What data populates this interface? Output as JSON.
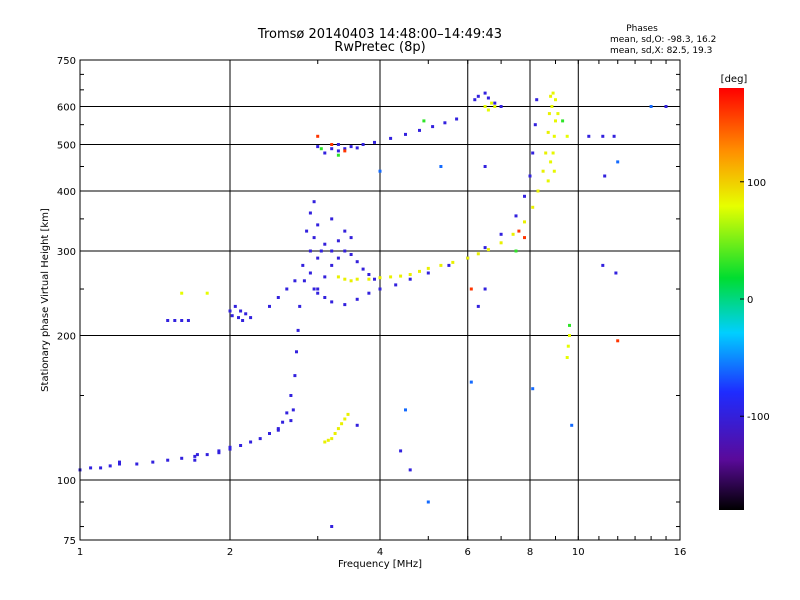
{
  "title_line1": "Tromsø 20140403 14:48:00–14:49:43",
  "title_line2": "RwPretec (8p)",
  "phases": {
    "heading": "Phases",
    "line_o": "mean, sd,O: -98.3, 16.2",
    "line_x": "mean, sd,X:  82.5, 19.3"
  },
  "chart_data": {
    "type": "scatter",
    "title": "Tromsø 20140403 14:48:00–14:49:43",
    "subtitle": "RwPretec (8p)",
    "xlabel": "Frequency [MHz]",
    "ylabel": "Stationary phase Virtual Height [km]",
    "xscale": "log",
    "yscale": "log",
    "xlim": [
      1,
      16
    ],
    "ylim": [
      75,
      750
    ],
    "xticks": [
      1,
      2,
      4,
      6,
      8,
      10,
      16
    ],
    "yticks": [
      75,
      100,
      200,
      300,
      400,
      500,
      600,
      750
    ],
    "grid": true,
    "colorbar": {
      "label": "[deg]",
      "range": [
        -180,
        180
      ],
      "ticks": [
        100,
        0,
        -100
      ]
    },
    "series": [
      {
        "phase": -98,
        "points": [
          [
            1.0,
            105
          ],
          [
            1.05,
            106
          ],
          [
            1.1,
            106
          ],
          [
            1.15,
            107
          ],
          [
            1.2,
            108
          ],
          [
            1.3,
            108
          ],
          [
            1.4,
            109
          ],
          [
            1.5,
            110
          ],
          [
            1.6,
            111
          ],
          [
            1.7,
            112
          ],
          [
            1.8,
            113
          ],
          [
            1.9,
            114
          ],
          [
            2.0,
            116
          ],
          [
            2.1,
            118
          ],
          [
            2.2,
            120
          ],
          [
            2.3,
            122
          ],
          [
            2.4,
            125
          ],
          [
            2.5,
            128
          ],
          [
            2.55,
            132
          ],
          [
            2.6,
            138
          ],
          [
            2.65,
            150
          ],
          [
            2.7,
            165
          ],
          [
            2.72,
            185
          ],
          [
            2.74,
            205
          ],
          [
            2.76,
            230
          ]
        ]
      },
      {
        "phase": -98,
        "points": [
          [
            1.7,
            110
          ],
          [
            1.72,
            113
          ],
          [
            1.9,
            115
          ],
          [
            2.0,
            117
          ],
          [
            2.5,
            127
          ],
          [
            2.65,
            133
          ],
          [
            2.68,
            140
          ],
          [
            1.2,
            109
          ]
        ]
      },
      {
        "phase": -98,
        "points": [
          [
            1.5,
            215
          ],
          [
            1.55,
            215
          ],
          [
            1.6,
            215
          ],
          [
            1.65,
            215
          ],
          [
            2.0,
            225
          ],
          [
            2.02,
            220
          ],
          [
            2.05,
            230
          ],
          [
            2.08,
            218
          ],
          [
            2.1,
            225
          ],
          [
            2.12,
            215
          ],
          [
            2.15,
            222
          ],
          [
            2.2,
            218
          ],
          [
            2.4,
            230
          ],
          [
            2.5,
            240
          ],
          [
            2.6,
            250
          ],
          [
            2.7,
            260
          ]
        ]
      },
      {
        "phase": -98,
        "points": [
          [
            2.8,
            280
          ],
          [
            2.85,
            330
          ],
          [
            2.9,
            360
          ],
          [
            2.95,
            380
          ],
          [
            3.0,
            340
          ],
          [
            3.05,
            300
          ],
          [
            2.82,
            260
          ],
          [
            2.9,
            270
          ],
          [
            2.95,
            250
          ],
          [
            3.0,
            245
          ],
          [
            3.1,
            240
          ],
          [
            3.2,
            235
          ],
          [
            3.4,
            232
          ],
          [
            3.6,
            238
          ],
          [
            3.8,
            245
          ],
          [
            4.0,
            250
          ],
          [
            4.3,
            255
          ],
          [
            4.6,
            262
          ],
          [
            5.0,
            270
          ],
          [
            5.5,
            280
          ],
          [
            6.0,
            290
          ],
          [
            6.5,
            305
          ],
          [
            7.0,
            325
          ],
          [
            7.5,
            355
          ],
          [
            7.8,
            390
          ],
          [
            8.0,
            430
          ],
          [
            8.1,
            480
          ],
          [
            8.2,
            550
          ],
          [
            8.25,
            620
          ]
        ]
      },
      {
        "phase": -100,
        "points": [
          [
            3.0,
            250
          ],
          [
            3.1,
            265
          ],
          [
            3.2,
            280
          ],
          [
            3.3,
            290
          ],
          [
            3.4,
            300
          ],
          [
            3.5,
            295
          ],
          [
            3.6,
            285
          ],
          [
            3.7,
            275
          ],
          [
            3.8,
            268
          ],
          [
            3.9,
            262
          ],
          [
            3.2,
            300
          ],
          [
            3.3,
            315
          ],
          [
            3.4,
            330
          ],
          [
            3.5,
            320
          ],
          [
            3.1,
            310
          ],
          [
            3.2,
            350
          ],
          [
            3.0,
            290
          ],
          [
            2.9,
            300
          ],
          [
            2.95,
            320
          ]
        ]
      },
      {
        "phase": -98,
        "points": [
          [
            3.2,
            490
          ],
          [
            3.3,
            485
          ],
          [
            3.4,
            490
          ],
          [
            3.5,
            495
          ],
          [
            3.7,
            500
          ],
          [
            3.9,
            505
          ],
          [
            4.2,
            515
          ],
          [
            4.5,
            525
          ],
          [
            4.8,
            535
          ],
          [
            5.1,
            545
          ],
          [
            5.4,
            555
          ],
          [
            5.7,
            565
          ],
          [
            3.0,
            495
          ],
          [
            3.1,
            480
          ],
          [
            3.3,
            500
          ],
          [
            3.6,
            492
          ]
        ]
      },
      {
        "phase": -98,
        "points": [
          [
            6.2,
            620
          ],
          [
            6.3,
            630
          ],
          [
            6.5,
            640
          ],
          [
            6.6,
            625
          ],
          [
            6.8,
            610
          ],
          [
            7.0,
            600
          ]
        ]
      },
      {
        "phase": 85,
        "points": [
          [
            3.3,
            265
          ],
          [
            3.4,
            262
          ],
          [
            3.5,
            260
          ],
          [
            3.6,
            262
          ],
          [
            3.8,
            262
          ],
          [
            4.0,
            264
          ],
          [
            4.2,
            265
          ],
          [
            4.4,
            266
          ],
          [
            4.6,
            268
          ],
          [
            4.8,
            272
          ],
          [
            5.0,
            276
          ],
          [
            5.3,
            280
          ],
          [
            5.6,
            284
          ],
          [
            6.0,
            290
          ],
          [
            6.3,
            296
          ],
          [
            6.6,
            302
          ],
          [
            7.0,
            312
          ],
          [
            7.4,
            325
          ],
          [
            7.8,
            345
          ],
          [
            8.1,
            370
          ],
          [
            8.3,
            400
          ],
          [
            8.5,
            440
          ],
          [
            8.6,
            480
          ],
          [
            8.7,
            530
          ],
          [
            8.75,
            580
          ],
          [
            8.8,
            630
          ]
        ]
      },
      {
        "phase": 82,
        "points": [
          [
            8.9,
            640
          ],
          [
            8.85,
            600
          ],
          [
            9.0,
            560
          ],
          [
            8.95,
            520
          ],
          [
            8.9,
            480
          ],
          [
            8.8,
            460
          ],
          [
            8.95,
            440
          ],
          [
            8.7,
            420
          ],
          [
            9.0,
            620
          ],
          [
            9.1,
            580
          ]
        ]
      },
      {
        "phase": 85,
        "points": [
          [
            3.1,
            120
          ],
          [
            3.15,
            121
          ],
          [
            3.2,
            122
          ],
          [
            3.25,
            125
          ],
          [
            3.3,
            128
          ],
          [
            3.35,
            131
          ],
          [
            3.4,
            134
          ],
          [
            3.45,
            137
          ]
        ]
      },
      {
        "phase": 80,
        "points": [
          [
            6.5,
            600
          ],
          [
            6.6,
            590
          ],
          [
            6.7,
            610
          ],
          [
            6.8,
            600
          ],
          [
            9.5,
            520
          ],
          [
            9.5,
            180
          ],
          [
            9.55,
            190
          ],
          [
            9.6,
            200
          ],
          [
            1.6,
            245
          ],
          [
            1.8,
            245
          ]
        ]
      },
      {
        "phase": 160,
        "points": [
          [
            3.0,
            520
          ],
          [
            3.2,
            500
          ],
          [
            3.4,
            485
          ],
          [
            6.1,
            250
          ],
          [
            12.0,
            195
          ],
          [
            7.8,
            320
          ],
          [
            7.6,
            330
          ]
        ]
      },
      {
        "phase": 30,
        "points": [
          [
            3.05,
            490
          ],
          [
            3.3,
            475
          ],
          [
            4.9,
            560
          ],
          [
            7.5,
            300
          ],
          [
            9.3,
            560
          ],
          [
            9.6,
            210
          ]
        ]
      },
      {
        "phase": -60,
        "points": [
          [
            4.0,
            440
          ],
          [
            4.5,
            140
          ],
          [
            5.0,
            90
          ],
          [
            6.1,
            160
          ],
          [
            9.7,
            130
          ],
          [
            12.0,
            460
          ],
          [
            14.0,
            600
          ],
          [
            5.3,
            450
          ],
          [
            8.1,
            155
          ]
        ]
      },
      {
        "phase": -98,
        "points": [
          [
            3.2,
            80
          ],
          [
            3.6,
            130
          ],
          [
            4.4,
            115
          ],
          [
            4.6,
            105
          ],
          [
            6.5,
            450
          ],
          [
            6.5,
            250
          ],
          [
            10.5,
            520
          ],
          [
            11.2,
            520
          ],
          [
            11.8,
            520
          ],
          [
            11.3,
            430
          ],
          [
            11.2,
            280
          ],
          [
            11.9,
            270
          ],
          [
            15.0,
            600
          ],
          [
            6.3,
            230
          ]
        ]
      }
    ]
  }
}
